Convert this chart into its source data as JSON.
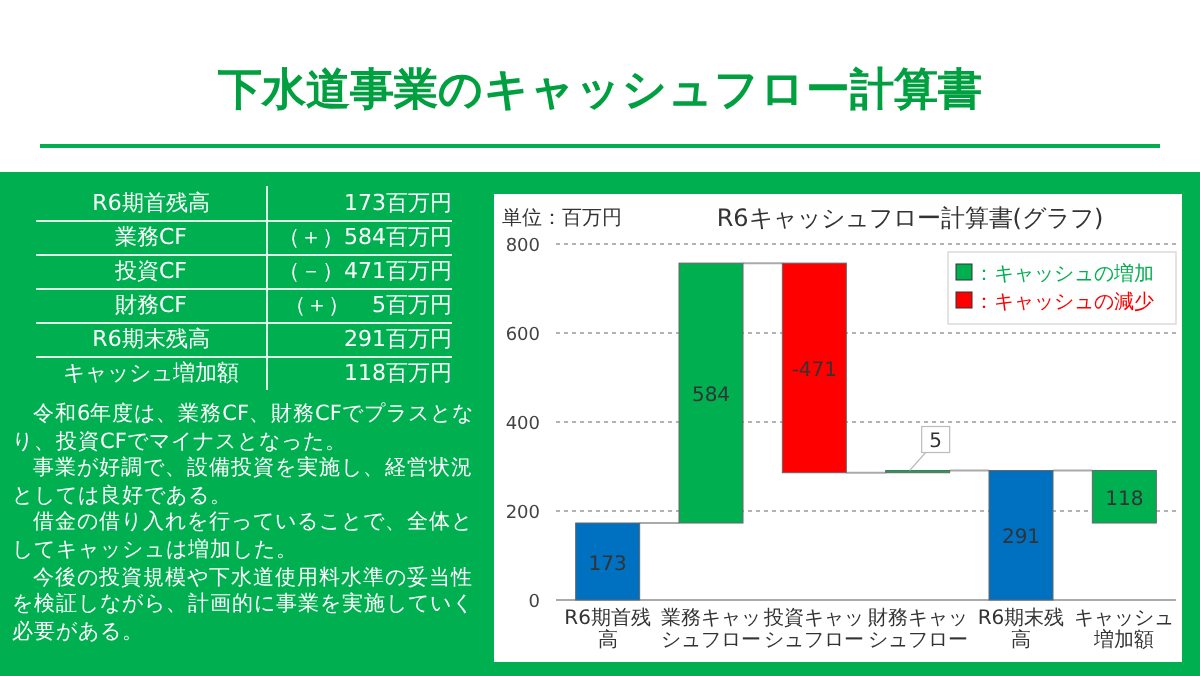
{
  "chart_data": {
    "type": "bar",
    "title": "R6キャッシュフロー計算書(グラフ)",
    "ylabel": "単位：百万円",
    "categories": [
      "R6期首残高",
      "業務キャッシュフロー",
      "投資キャッシュフロー",
      "財務キャッシュフロー",
      "R6期末残高",
      "キャッシュ増加額"
    ],
    "series": [
      {
        "name": "：キャッシュの増加",
        "color": "#00b050",
        "base": [
          null,
          173,
          null,
          286,
          null,
          173
        ],
        "values": [
          null,
          584,
          null,
          5,
          null,
          118
        ]
      },
      {
        "name": "：キャッシュの減少",
        "color": "#ff0000",
        "base": [
          null,
          null,
          757,
          null,
          null,
          null
        ],
        "values": [
          null,
          null,
          -471,
          null,
          null,
          null
        ]
      },
      {
        "color": "#0070c0",
        "base": [
          0,
          null,
          null,
          null,
          0,
          null
        ],
        "values": [
          173,
          null,
          null,
          null,
          291,
          null
        ]
      }
    ],
    "ylim": [
      0,
      800
    ],
    "yticks": [
      0,
      200,
      400,
      600,
      800
    ],
    "grid": "y",
    "legend": "top right",
    "data_labels": true,
    "annotations": [
      "下水道事業のキャッシュフロー計算書",
      "R6期首残高",
      "173百万円",
      "業務CF",
      "（＋）584百万円",
      "投資CF",
      "（－）471百万円",
      "財務CF",
      "（＋）　5百万円",
      "R6期末残高",
      "291百万円",
      "キャッシュ増加額",
      "118百万円",
      "令和6年度は、業務CF、財務CFでプラスとなり、投資CFでマイナスとなった。",
      "事業が好調で、設備投資を実施し、経営状況としては良好である。",
      "借金の借り入れを行っていることで、全体としてキャッシュは増加した。",
      "今後の投資規模や下水道使用料水準の妥当性を検証しながら、計画的に事業を実施していく必要がある。"
    ]
  }
}
